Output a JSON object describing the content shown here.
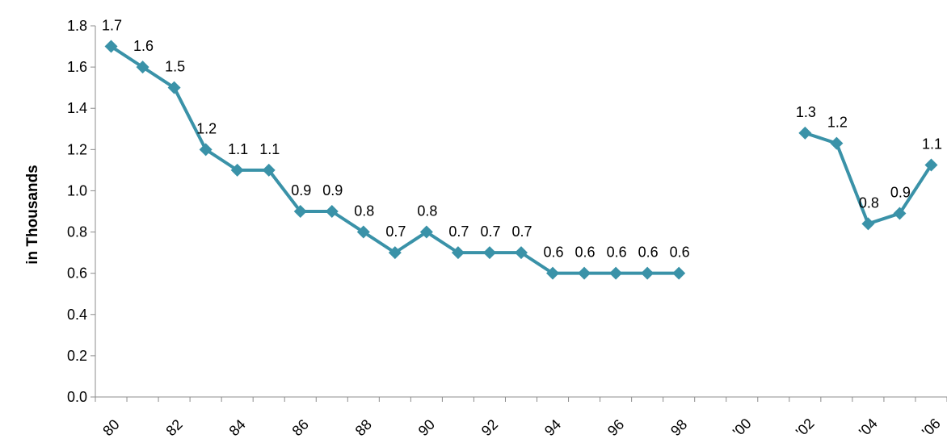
{
  "chart_data": {
    "type": "line",
    "title": "",
    "xlabel": "",
    "ylabel": "in Thousands",
    "ylim": [
      0,
      1.8
    ],
    "yticks": [
      "0.0",
      "0.2",
      "0.4",
      "0.6",
      "0.8",
      "1.0",
      "1.2",
      "1.4",
      "1.6",
      "1.8"
    ],
    "categories": [
      "80",
      "81",
      "82",
      "83",
      "84",
      "85",
      "86",
      "87",
      "88",
      "89",
      "90",
      "91",
      "92",
      "93",
      "94",
      "95",
      "96",
      "97",
      "98",
      "99",
      "'00",
      "'01",
      "'02",
      "'03",
      "'04",
      "'05",
      "'06"
    ],
    "xtick_labels": [
      "80",
      "82",
      "84",
      "86",
      "88",
      "90",
      "92",
      "94",
      "96",
      "98",
      "'00",
      "'02",
      "'04",
      "'06"
    ],
    "series": [
      {
        "values": [
          1.7,
          1.6,
          1.5,
          1.2,
          1.1,
          1.1,
          0.9,
          0.9,
          0.8,
          0.7,
          0.8,
          0.7,
          0.7,
          0.7,
          0.6,
          0.6,
          0.6,
          0.6,
          0.6,
          null,
          null,
          null,
          1.28,
          1.23,
          0.84,
          0.89,
          1.125
        ],
        "labels": [
          "1.7",
          "1.6",
          "1.5",
          "1.2",
          "1.1",
          "1.1",
          "0.9",
          "0.9",
          "0.8",
          "0.7",
          "0.8",
          "0.7",
          "0.7",
          "0.7",
          "0.6",
          "0.6",
          "0.6",
          "0.6",
          "0.6",
          "",
          "",
          "",
          "1.3",
          "1.2",
          "0.8",
          "0.9",
          "1.1"
        ]
      }
    ],
    "grid": false,
    "colors": {
      "series": "#3a92a8",
      "axis": "#8c8c8c"
    }
  }
}
